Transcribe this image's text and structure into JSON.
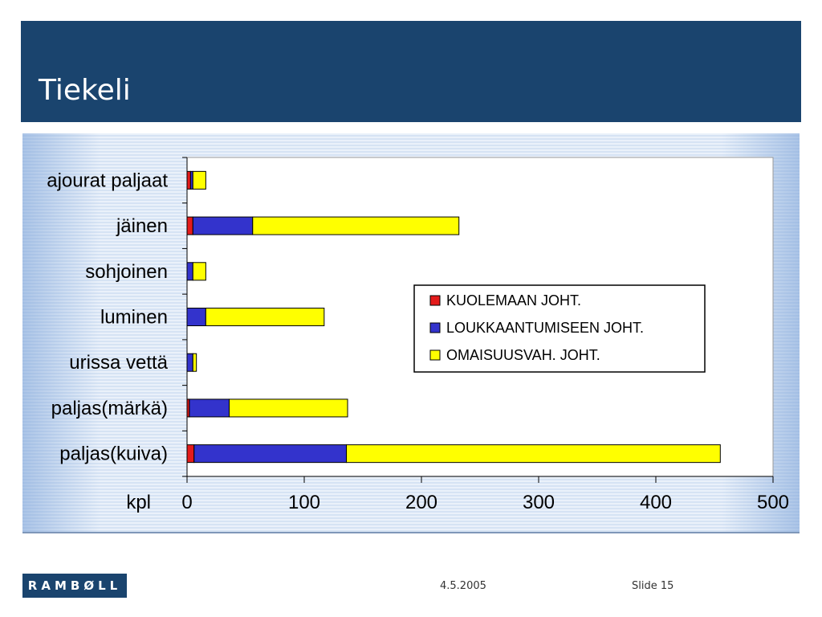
{
  "slide": {
    "title": "Tiekeli"
  },
  "footer": {
    "logo_text": "RAMBØLL",
    "date": "4.5.2005",
    "slide_number": "Slide 15"
  },
  "chart_data": {
    "type": "bar",
    "orientation": "horizontal",
    "stacked": true,
    "categories": [
      "ajourat paljaat",
      "jäinen",
      "sohjoinen",
      "luminen",
      "urissa vettä",
      "paljas(märkä)",
      "paljas(kuiva)"
    ],
    "series": [
      {
        "name": "KUOLEMAAN JOHT.",
        "color": "#e41b1b",
        "values": [
          3,
          5,
          0,
          0,
          0,
          2,
          6
        ]
      },
      {
        "name": "LOUKKAANTUMISEEN JOHT.",
        "color": "#3333cc",
        "values": [
          2,
          51,
          5,
          16,
          5,
          34,
          130
        ]
      },
      {
        "name": "OMAISUUSVAH. JOHT.",
        "color": "#ffff00",
        "values": [
          11,
          176,
          11,
          101,
          3,
          101,
          319
        ]
      }
    ],
    "xlabel": "kpl",
    "xlim": [
      0,
      500
    ],
    "xticks": [
      0,
      100,
      200,
      300,
      400,
      500
    ],
    "legend_position": "right-center"
  }
}
